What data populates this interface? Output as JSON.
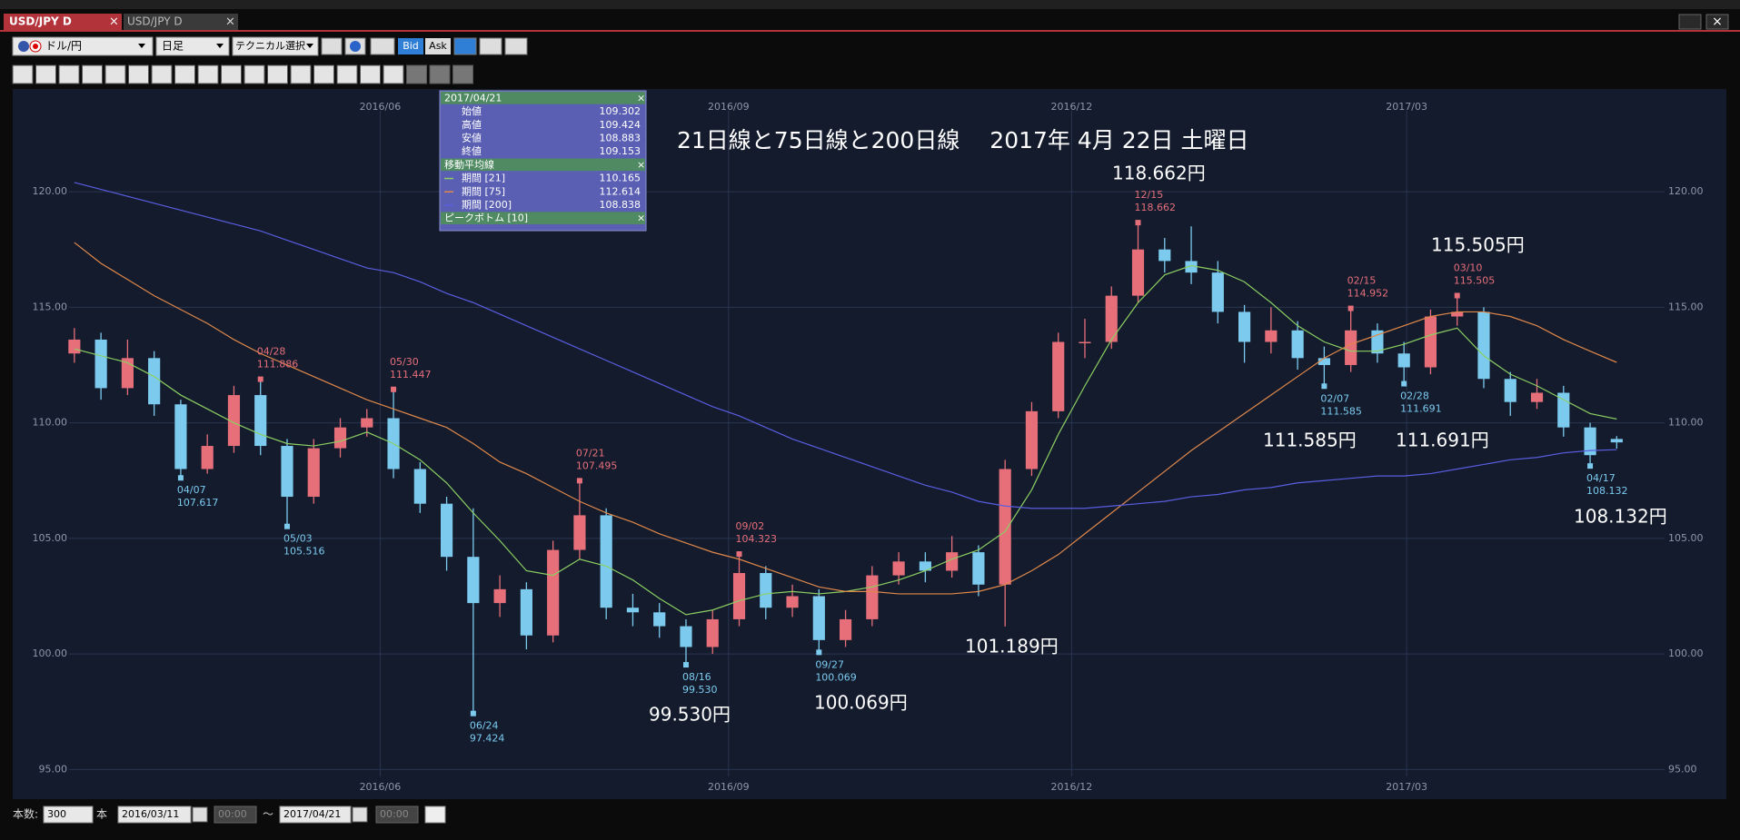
{
  "ui": {
    "tabs": [
      "USD/JPY D",
      "USD/JPY D"
    ],
    "toolbar": {
      "pair": "ドル/円",
      "timeframe": "日足",
      "technical": "テクニカル選択",
      "bid": "Bid",
      "ask": "Ask"
    },
    "info_panel": {
      "date": "2017/04/21",
      "ohlc_labels": [
        "始値",
        "高値",
        "安値",
        "終値"
      ],
      "ma_title": "移動平均線",
      "peak_bottom": "ピークボトム [10]"
    },
    "bottom_bar": {
      "count_label": "本数:",
      "count": "300",
      "count_unit": "本",
      "start": "2016/03/11",
      "start_time": "00:00",
      "tilde": "〜",
      "end": "2017/04/21",
      "end_time": "00:00"
    }
  },
  "chart_data": {
    "type": "candlestick",
    "title": "21日線と75日線と200日線　 2017年 4月 22日 土曜日",
    "candles": {
      "open": [
        113.0,
        113.6,
        111.5,
        112.8,
        110.8,
        108.0,
        109.0,
        111.2,
        109.0,
        106.8,
        108.9,
        109.8,
        110.2,
        108.0,
        106.5,
        104.2,
        102.2,
        102.8,
        100.8,
        104.5,
        106.0,
        102.0,
        101.8,
        101.2,
        100.3,
        101.5,
        103.5,
        102.0,
        102.5,
        100.6,
        101.5,
        103.4,
        104.0,
        103.6,
        104.4,
        103.0,
        108.0,
        110.5,
        113.5,
        113.5,
        115.5,
        117.5,
        117.0,
        116.5,
        114.8,
        113.5,
        114.0,
        112.8,
        112.5,
        114.0,
        113.0,
        112.4,
        114.6,
        114.8,
        111.9,
        110.9,
        111.3,
        109.8,
        109.302
      ],
      "high": [
        114.1,
        113.9,
        113.6,
        113.1,
        111.0,
        109.5,
        111.6,
        111.886,
        109.3,
        109.3,
        110.2,
        110.6,
        111.447,
        108.3,
        106.8,
        106.3,
        103.4,
        103.1,
        104.9,
        107.495,
        106.3,
        102.6,
        102.2,
        101.5,
        101.9,
        104.323,
        103.8,
        103.0,
        102.8,
        101.9,
        103.8,
        104.4,
        104.4,
        105.1,
        104.7,
        108.4,
        110.9,
        113.9,
        114.5,
        115.9,
        118.662,
        118.0,
        118.5,
        117.0,
        115.1,
        115.0,
        114.4,
        113.3,
        114.952,
        114.3,
        113.5,
        114.9,
        115.505,
        115.0,
        112.2,
        111.9,
        111.6,
        110.0,
        109.424
      ],
      "low": [
        112.6,
        111.0,
        111.2,
        110.3,
        107.617,
        107.8,
        108.7,
        108.6,
        105.516,
        106.5,
        108.5,
        109.4,
        107.6,
        106.1,
        103.6,
        97.424,
        101.6,
        100.2,
        100.5,
        104.1,
        101.5,
        101.2,
        100.7,
        99.53,
        100.0,
        101.2,
        101.5,
        101.6,
        100.069,
        100.3,
        101.2,
        103.0,
        103.1,
        103.3,
        102.5,
        101.189,
        107.7,
        110.2,
        112.8,
        113.2,
        115.2,
        116.5,
        116.0,
        114.3,
        112.6,
        113.0,
        112.3,
        111.585,
        112.2,
        112.6,
        111.691,
        112.1,
        114.2,
        111.5,
        110.3,
        110.6,
        109.4,
        108.132,
        108.883
      ],
      "close": [
        113.6,
        111.5,
        112.8,
        110.8,
        108.0,
        109.0,
        111.2,
        109.0,
        106.8,
        108.9,
        109.8,
        110.2,
        108.0,
        106.5,
        104.2,
        102.2,
        102.8,
        100.8,
        104.5,
        106.0,
        102.0,
        101.8,
        101.2,
        100.3,
        101.5,
        103.5,
        102.0,
        102.5,
        100.6,
        101.5,
        103.4,
        104.0,
        103.6,
        104.4,
        103.0,
        108.0,
        110.5,
        113.5,
        113.5,
        115.5,
        117.5,
        117.0,
        116.5,
        114.8,
        113.5,
        114.0,
        112.8,
        112.5,
        114.0,
        113.0,
        112.4,
        114.6,
        114.8,
        111.9,
        110.9,
        111.3,
        109.8,
        108.6,
        109.153
      ],
      "up_color": "#e66f7a",
      "down_color": "#7ccbef"
    },
    "series": [
      {
        "name": "期間 [21]",
        "color": "#8ccf62",
        "values": [
          113.2,
          112.9,
          112.6,
          112.0,
          111.2,
          110.6,
          110.0,
          109.5,
          109.1,
          109.0,
          109.2,
          109.6,
          109.1,
          108.4,
          107.4,
          106.1,
          104.9,
          103.6,
          103.4,
          104.1,
          103.8,
          103.2,
          102.4,
          101.7,
          101.9,
          102.3,
          102.6,
          102.7,
          102.6,
          102.7,
          102.9,
          103.2,
          103.6,
          104.1,
          104.5,
          105.3,
          107.1,
          109.5,
          111.6,
          113.6,
          115.2,
          116.4,
          116.8,
          116.6,
          116.1,
          115.2,
          114.2,
          113.5,
          113.1,
          113.1,
          113.4,
          113.8,
          114.1,
          112.9,
          112.1,
          111.6,
          111.0,
          110.4,
          110.165
        ]
      },
      {
        "name": "期間 [75]",
        "color": "#e0884a",
        "values": [
          117.8,
          116.9,
          116.2,
          115.5,
          114.9,
          114.3,
          113.6,
          113.0,
          112.5,
          112.0,
          111.5,
          111.0,
          110.6,
          110.2,
          109.8,
          109.1,
          108.3,
          107.8,
          107.2,
          106.6,
          106.1,
          105.7,
          105.2,
          104.8,
          104.4,
          104.1,
          103.7,
          103.3,
          102.9,
          102.7,
          102.7,
          102.6,
          102.6,
          102.6,
          102.7,
          103.0,
          103.6,
          104.3,
          105.2,
          106.1,
          107.0,
          107.9,
          108.8,
          109.6,
          110.4,
          111.2,
          112.0,
          112.8,
          113.4,
          113.8,
          114.2,
          114.6,
          114.8,
          114.8,
          114.6,
          114.2,
          113.6,
          113.1,
          112.614
        ]
      },
      {
        "name": "期間 [200]",
        "color": "#5a5ee0",
        "values": [
          120.4,
          120.1,
          119.8,
          119.5,
          119.2,
          118.9,
          118.6,
          118.3,
          117.9,
          117.5,
          117.1,
          116.7,
          116.5,
          116.1,
          115.6,
          115.2,
          114.7,
          114.2,
          113.7,
          113.2,
          112.7,
          112.2,
          111.7,
          111.2,
          110.7,
          110.3,
          109.8,
          109.3,
          108.9,
          108.5,
          108.1,
          107.7,
          107.3,
          107.0,
          106.6,
          106.4,
          106.3,
          106.3,
          106.3,
          106.4,
          106.5,
          106.6,
          106.8,
          106.9,
          107.1,
          107.2,
          107.4,
          107.5,
          107.6,
          107.7,
          107.7,
          107.8,
          108.0,
          108.2,
          108.4,
          108.5,
          108.7,
          108.8,
          108.838
        ]
      }
    ],
    "xlim": [
      -0.2,
      59.8
    ],
    "xticks": [
      {
        "value": 11.5,
        "label": "2016/06"
      },
      {
        "value": 24.6,
        "label": "2016/09"
      },
      {
        "value": 37.5,
        "label": "2016/12"
      },
      {
        "value": 50.1,
        "label": "2017/03"
      }
    ],
    "ylim": [
      94.7,
      123.5
    ],
    "yticks": [
      {
        "value": 95,
        "label": "95.00"
      },
      {
        "value": 100,
        "label": "100.00"
      },
      {
        "value": 105,
        "label": "105.00"
      },
      {
        "value": 110,
        "label": "110.00"
      },
      {
        "value": 115,
        "label": "115.00"
      },
      {
        "value": 120,
        "label": "120.00"
      }
    ],
    "grid": true,
    "annotations": [
      {
        "x": 4,
        "date": "04/07",
        "value": 107.617,
        "label": "107.617",
        "kind": "bottom"
      },
      {
        "x": 7,
        "date": "04/28",
        "value": 111.886,
        "label": "111.886",
        "kind": "peak"
      },
      {
        "x": 8,
        "date": "05/03",
        "value": 105.516,
        "label": "105.516",
        "kind": "bottom"
      },
      {
        "x": 12,
        "date": "05/30",
        "value": 111.447,
        "label": "111.447",
        "kind": "peak"
      },
      {
        "x": 15,
        "date": "06/24",
        "value": 97.424,
        "label": "97.424",
        "kind": "bottom"
      },
      {
        "x": 19,
        "date": "07/21",
        "value": 107.495,
        "label": "107.495",
        "kind": "peak"
      },
      {
        "x": 23,
        "date": "08/16",
        "value": 99.53,
        "label": "99.530",
        "kind": "bottom"
      },
      {
        "x": 25,
        "date": "09/02",
        "value": 104.323,
        "label": "104.323",
        "kind": "peak"
      },
      {
        "x": 28,
        "date": "09/27",
        "value": 100.069,
        "label": "100.069",
        "kind": "bottom"
      },
      {
        "x": 40,
        "date": "12/15",
        "value": 118.662,
        "label": "118.662",
        "kind": "peak"
      },
      {
        "x": 47,
        "date": "02/07",
        "value": 111.585,
        "label": "111.585",
        "kind": "bottom"
      },
      {
        "x": 48,
        "date": "02/15",
        "value": 114.952,
        "label": "114.952",
        "kind": "peak"
      },
      {
        "x": 50,
        "date": "02/28",
        "value": 111.691,
        "label": "111.691",
        "kind": "bottom"
      },
      {
        "x": 52,
        "date": "03/10",
        "value": 115.505,
        "label": "115.505",
        "kind": "peak"
      },
      {
        "x": 57,
        "date": "04/17",
        "value": 108.132,
        "label": "108.132",
        "kind": "bottom"
      }
    ],
    "callouts": [
      "118.662円",
      "115.505円",
      "111.585円",
      "111.691円",
      "108.132円",
      "101.189円",
      "99.530円",
      "100.069円"
    ]
  }
}
